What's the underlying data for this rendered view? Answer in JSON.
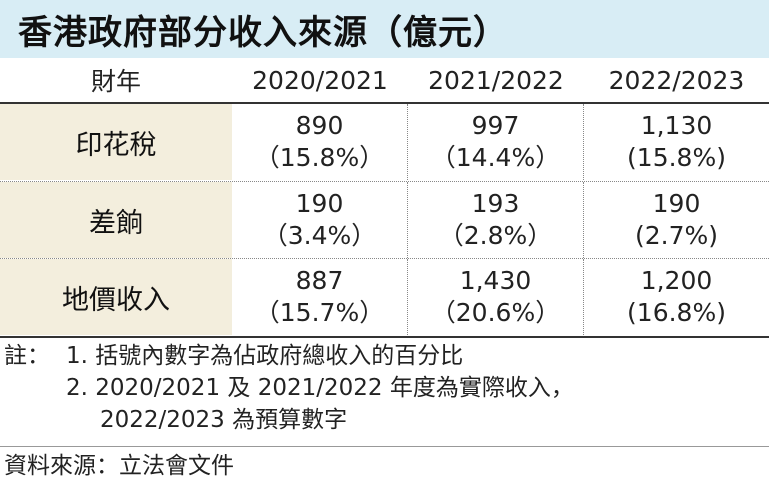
{
  "title": "香港政府部分收入來源（億元）",
  "table": {
    "headers": [
      "財年",
      "2020/2021",
      "2021/2022",
      "2022/2023"
    ],
    "rows": [
      {
        "label": "印花稅",
        "cells": [
          {
            "value": "890",
            "pct": "（15.8%）"
          },
          {
            "value": "997",
            "pct": "（14.4%）"
          },
          {
            "value": "1,130",
            "pct": "(15.8%)"
          }
        ]
      },
      {
        "label": "差餉",
        "cells": [
          {
            "value": "190",
            "pct": "（3.4%）"
          },
          {
            "value": "193",
            "pct": "（2.8%）"
          },
          {
            "value": "190",
            "pct": "(2.7%)"
          }
        ]
      },
      {
        "label": "地價收入",
        "cells": [
          {
            "value": "887",
            "pct": "（15.7%）"
          },
          {
            "value": "1,430",
            "pct": "（20.6%）"
          },
          {
            "value": "1,200",
            "pct": "(16.8%)"
          }
        ]
      }
    ]
  },
  "notes": {
    "label": "註：",
    "lines": [
      "1. 括號內數字為佔政府總收入的百分比",
      "2. 2020/2021 及 2021/2022 年度為實際收入，",
      "2022/2023 為預算數字"
    ]
  },
  "source": "資料來源：立法會文件"
}
